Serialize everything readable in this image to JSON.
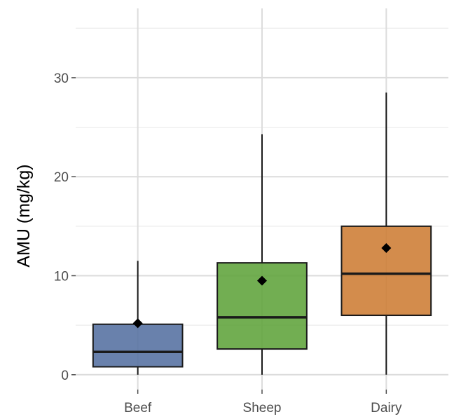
{
  "chart_data": {
    "type": "boxplot",
    "title": "",
    "xlabel": "",
    "ylabel": "AMU (mg/kg)",
    "ylim": [
      -1.5,
      37
    ],
    "yticks": [
      0,
      10,
      20,
      30
    ],
    "grid": true,
    "legend": "none",
    "categories": [
      "Beef",
      "Sheep",
      "Dairy"
    ],
    "boxes": [
      {
        "category": "Beef",
        "min": 0,
        "q1": 0.8,
        "median": 2.3,
        "q3": 5.1,
        "max": 11.5,
        "mean": 5.2,
        "color": "#5470a0"
      },
      {
        "category": "Sheep",
        "min": 0,
        "q1": 2.6,
        "median": 5.8,
        "q3": 11.3,
        "max": 24.3,
        "mean": 9.5,
        "color": "#5ea33a"
      },
      {
        "category": "Dairy",
        "min": 0,
        "q1": 6.0,
        "median": 10.2,
        "q3": 15.0,
        "max": 28.5,
        "mean": 12.8,
        "color": "#cd7c33"
      }
    ]
  }
}
